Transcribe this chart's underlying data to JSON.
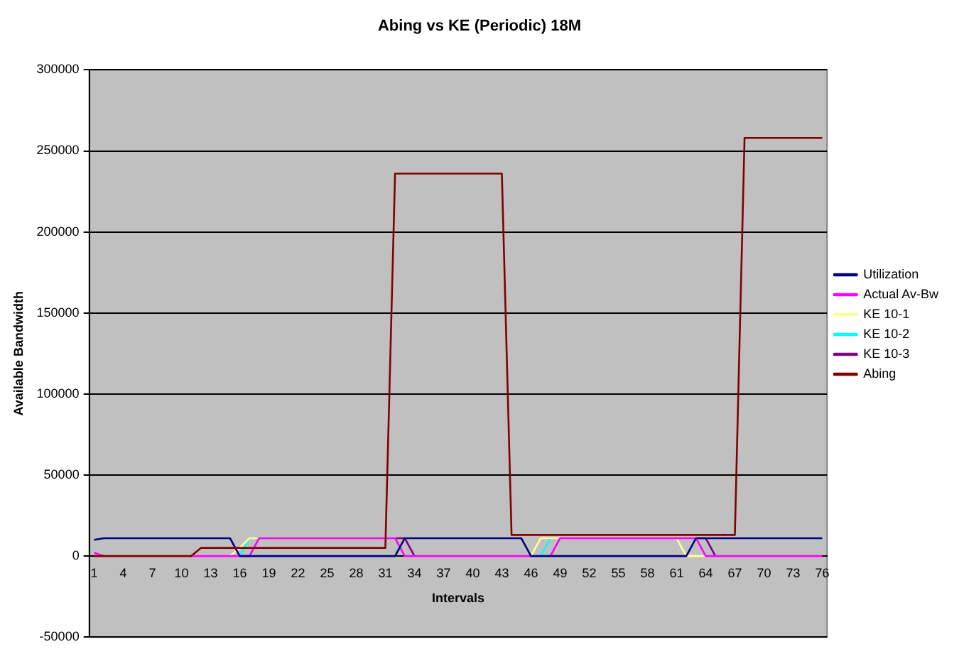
{
  "chart_data": {
    "type": "line",
    "title": "Abing vs KE (Periodic) 18M",
    "xlabel": "Intervals",
    "ylabel": "Available Bandwidth",
    "categories": [
      "1",
      null,
      null,
      "4",
      null,
      null,
      "7",
      null,
      null,
      "10",
      null,
      null,
      "13",
      null,
      null,
      "16",
      null,
      null,
      "19",
      null,
      null,
      "22",
      null,
      null,
      "25",
      null,
      null,
      "28",
      null,
      null,
      "31",
      null,
      null,
      "34",
      null,
      null,
      "37",
      null,
      null,
      "40",
      null,
      null,
      "43",
      null,
      null,
      "46",
      null,
      null,
      "49",
      null,
      null,
      "52",
      null,
      null,
      "55",
      null,
      null,
      "58",
      null,
      null,
      "61",
      null,
      null,
      "64",
      null,
      null,
      "67",
      null,
      null,
      "70",
      null,
      null,
      "73",
      null,
      null,
      "76"
    ],
    "series": [
      {
        "name": "Utilization",
        "color": "#000080",
        "values": [
          10000,
          11000,
          11000,
          11000,
          11000,
          11000,
          11000,
          11000,
          11000,
          11000,
          11000,
          11000,
          11000,
          11000,
          11000,
          0,
          0,
          0,
          0,
          0,
          0,
          0,
          0,
          0,
          0,
          0,
          0,
          0,
          0,
          0,
          0,
          0,
          11000,
          11000,
          11000,
          11000,
          11000,
          11000,
          11000,
          11000,
          11000,
          11000,
          11000,
          11000,
          11000,
          0,
          0,
          0,
          0,
          0,
          0,
          0,
          0,
          0,
          0,
          0,
          0,
          0,
          0,
          0,
          0,
          0,
          11000,
          11000,
          11000,
          11000,
          11000,
          11000,
          11000,
          11000,
          11000,
          11000,
          11000,
          11000,
          11000,
          11000
        ]
      },
      {
        "name": "Actual Av-Bw",
        "color": "#ff00ff",
        "values": [
          2000,
          0,
          null,
          null,
          null,
          null,
          null,
          null,
          null,
          null,
          0,
          0,
          0,
          0,
          0,
          0,
          0,
          11000,
          11000,
          11000,
          11000,
          11000,
          11000,
          11000,
          11000,
          11000,
          11000,
          11000,
          11000,
          11000,
          11000,
          11000,
          0,
          0,
          0,
          0,
          0,
          0,
          0,
          0,
          0,
          0,
          0,
          0,
          0,
          0,
          null,
          0,
          11000,
          11000,
          11000,
          11000,
          11000,
          11000,
          11000,
          11000,
          11000,
          11000,
          11000,
          11000,
          11000,
          11000,
          11000,
          0,
          0,
          0,
          0,
          0,
          0,
          0,
          0,
          0,
          0,
          0,
          0,
          0
        ]
      },
      {
        "name": "KE 10-1",
        "color": "#ffff99",
        "values": [
          null,
          null,
          null,
          null,
          null,
          null,
          null,
          null,
          null,
          null,
          null,
          null,
          null,
          null,
          0,
          5000,
          11000,
          11000,
          null,
          null,
          null,
          null,
          null,
          null,
          null,
          null,
          null,
          null,
          null,
          null,
          null,
          null,
          null,
          null,
          null,
          null,
          null,
          null,
          null,
          null,
          null,
          null,
          null,
          null,
          null,
          0,
          11000,
          11000,
          11000,
          null,
          null,
          null,
          null,
          null,
          null,
          null,
          null,
          null,
          null,
          null,
          11000,
          0,
          0,
          0,
          null,
          null,
          null,
          null,
          null,
          null,
          null,
          null,
          null,
          null,
          null,
          null
        ]
      },
      {
        "name": "KE 10-2",
        "color": "#00ffff",
        "values": [
          null,
          null,
          null,
          null,
          null,
          null,
          null,
          null,
          null,
          null,
          null,
          null,
          null,
          null,
          null,
          0,
          11000,
          null,
          null,
          null,
          null,
          null,
          null,
          null,
          null,
          null,
          null,
          null,
          null,
          null,
          null,
          null,
          null,
          null,
          null,
          null,
          null,
          null,
          null,
          null,
          null,
          null,
          null,
          null,
          null,
          null,
          0,
          11000,
          null,
          null,
          null,
          null,
          null,
          null,
          null,
          null,
          null,
          null,
          null,
          null,
          null,
          null,
          null,
          null,
          null,
          null,
          null,
          null,
          null,
          null,
          null,
          null,
          null,
          null,
          null,
          null
        ]
      },
      {
        "name": "KE 10-3",
        "color": "#800080",
        "values": [
          null,
          null,
          null,
          null,
          null,
          null,
          null,
          null,
          null,
          null,
          null,
          null,
          null,
          null,
          null,
          null,
          null,
          null,
          null,
          null,
          null,
          null,
          null,
          null,
          null,
          null,
          null,
          null,
          null,
          null,
          null,
          11000,
          11000,
          0,
          null,
          null,
          null,
          null,
          null,
          null,
          null,
          null,
          null,
          null,
          null,
          null,
          null,
          null,
          null,
          null,
          null,
          null,
          null,
          null,
          null,
          null,
          null,
          null,
          null,
          null,
          null,
          null,
          11000,
          11000,
          0,
          null,
          null,
          null,
          null,
          null,
          null,
          null,
          null,
          null,
          null,
          null
        ]
      },
      {
        "name": "Abing",
        "color": "#800000",
        "values": [
          0,
          0,
          0,
          0,
          0,
          0,
          0,
          0,
          0,
          0,
          0,
          5000,
          5000,
          5000,
          5000,
          5000,
          5000,
          5000,
          5000,
          5000,
          5000,
          5000,
          5000,
          5000,
          5000,
          5000,
          5000,
          5000,
          5000,
          5000,
          5000,
          236000,
          236000,
          236000,
          236000,
          236000,
          236000,
          236000,
          236000,
          236000,
          236000,
          236000,
          236000,
          13000,
          13000,
          13000,
          13000,
          13000,
          13000,
          13000,
          13000,
          13000,
          13000,
          13000,
          13000,
          13000,
          13000,
          13000,
          13000,
          13000,
          13000,
          13000,
          13000,
          13000,
          13000,
          13000,
          13000,
          258000,
          258000,
          258000,
          258000,
          258000,
          258000,
          258000,
          258000,
          258000
        ]
      }
    ],
    "ylim": [
      -50000,
      300000
    ],
    "yticks": [
      -50000,
      0,
      50000,
      100000,
      150000,
      200000,
      250000,
      300000
    ],
    "grid": "y",
    "legend": "right",
    "marker": "none",
    "line_style": "solid"
  }
}
